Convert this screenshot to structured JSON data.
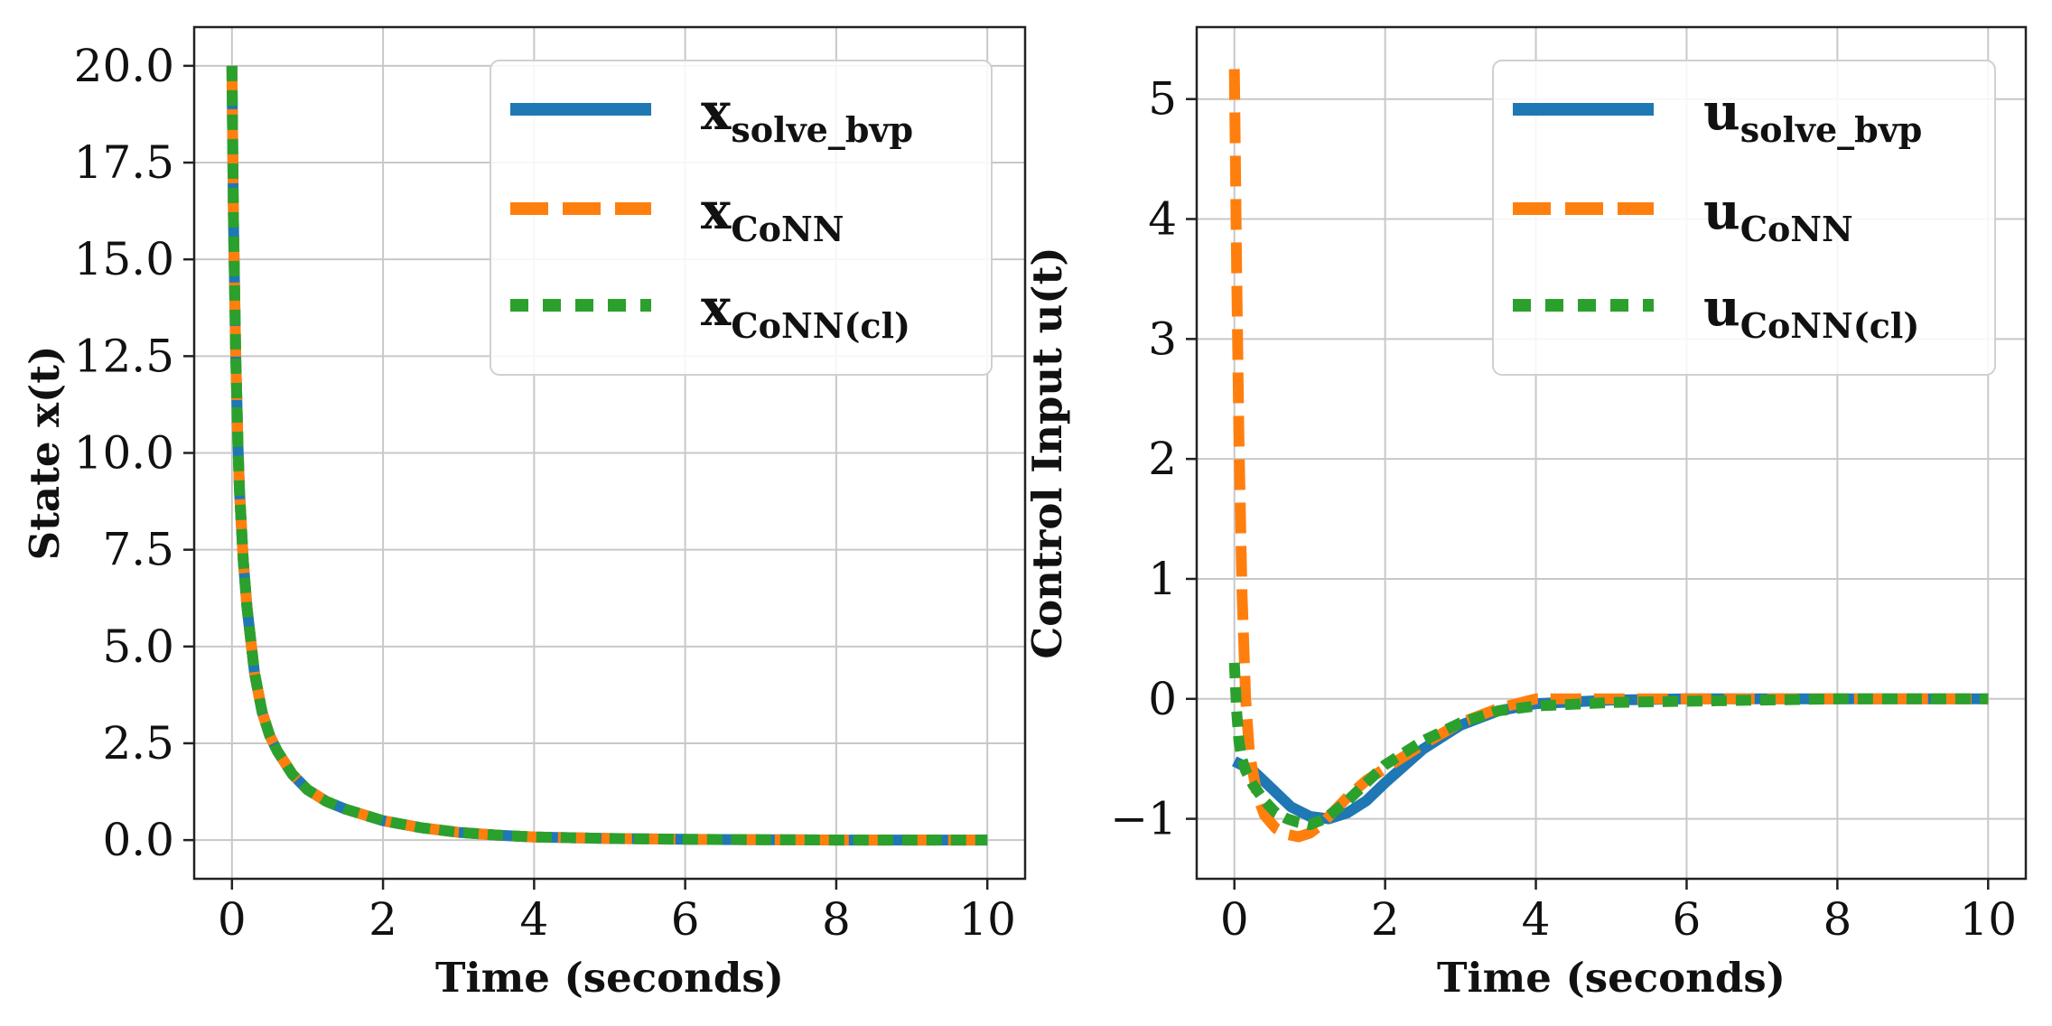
{
  "chart_data": [
    {
      "type": "line",
      "xlabel": "Time (seconds)",
      "ylabel": "State x(t)",
      "xlim": [
        -0.5,
        10.5
      ],
      "ylim": [
        -1.0,
        21.0
      ],
      "xticks": [
        0,
        2,
        4,
        6,
        8,
        10
      ],
      "xticklabels": [
        "0",
        "2",
        "4",
        "6",
        "8",
        "10"
      ],
      "yticks": [
        0,
        2.5,
        5,
        7.5,
        10,
        12.5,
        15,
        17.5,
        20
      ],
      "yticklabels": [
        "0.0",
        "2.5",
        "5.0",
        "7.5",
        "10.0",
        "12.5",
        "15.0",
        "17.5",
        "20.0"
      ],
      "grid": true,
      "legend_position": "top-right",
      "series": [
        {
          "name": "x_solve_bvp",
          "legend_base": "x",
          "legend_sub": "solve_bvp",
          "color": "#1f77b4",
          "style": "solid",
          "x": [
            0,
            0.02,
            0.05,
            0.08,
            0.1,
            0.15,
            0.2,
            0.3,
            0.4,
            0.5,
            0.6,
            0.8,
            1.0,
            1.25,
            1.5,
            2.0,
            2.5,
            3.0,
            3.5,
            4.0,
            5.0,
            6.0,
            7.0,
            8.0,
            9.0,
            10.0
          ],
          "y": [
            20.0,
            16.0,
            12.5,
            10.2,
            9.0,
            7.2,
            6.0,
            4.3,
            3.3,
            2.7,
            2.3,
            1.7,
            1.3,
            1.0,
            0.8,
            0.5,
            0.32,
            0.2,
            0.13,
            0.08,
            0.04,
            0.02,
            0.01,
            0.0,
            0.0,
            0.0
          ]
        },
        {
          "name": "x_CoNN",
          "legend_base": "x",
          "legend_sub": "CoNN",
          "color": "#ff7f0e",
          "style": "dashed",
          "x": [
            0,
            0.02,
            0.05,
            0.08,
            0.1,
            0.15,
            0.2,
            0.3,
            0.4,
            0.5,
            0.6,
            0.8,
            1.0,
            1.25,
            1.5,
            2.0,
            2.5,
            3.0,
            3.5,
            4.0,
            5.0,
            6.0,
            7.0,
            8.0,
            9.0,
            10.0
          ],
          "y": [
            20.0,
            16.0,
            12.5,
            10.2,
            9.0,
            7.2,
            6.0,
            4.3,
            3.3,
            2.7,
            2.3,
            1.7,
            1.3,
            1.0,
            0.8,
            0.5,
            0.32,
            0.2,
            0.13,
            0.08,
            0.04,
            0.02,
            0.01,
            0.0,
            0.0,
            0.0
          ]
        },
        {
          "name": "x_CoNN(cl)",
          "legend_base": "x",
          "legend_sub": "CoNN(cl)",
          "color": "#2ca02c",
          "style": "dotted",
          "x": [
            0,
            0.02,
            0.05,
            0.08,
            0.1,
            0.15,
            0.2,
            0.3,
            0.4,
            0.5,
            0.6,
            0.8,
            1.0,
            1.25,
            1.5,
            2.0,
            2.5,
            3.0,
            3.5,
            4.0,
            5.0,
            6.0,
            7.0,
            8.0,
            9.0,
            10.0
          ],
          "y": [
            20.0,
            16.0,
            12.5,
            10.2,
            9.0,
            7.2,
            6.0,
            4.3,
            3.3,
            2.7,
            2.3,
            1.7,
            1.3,
            1.0,
            0.8,
            0.5,
            0.32,
            0.2,
            0.13,
            0.08,
            0.04,
            0.02,
            0.01,
            0.0,
            0.0,
            0.0
          ]
        }
      ]
    },
    {
      "type": "line",
      "xlabel": "Time (seconds)",
      "ylabel": "Control Input u(t)",
      "xlim": [
        -0.5,
        10.5
      ],
      "ylim": [
        -1.5,
        5.6
      ],
      "xticks": [
        0,
        2,
        4,
        6,
        8,
        10
      ],
      "xticklabels": [
        "0",
        "2",
        "4",
        "6",
        "8",
        "10"
      ],
      "yticks": [
        -1,
        0,
        1,
        2,
        3,
        4,
        5
      ],
      "yticklabels": [
        "−1",
        "0",
        "1",
        "2",
        "3",
        "4",
        "5"
      ],
      "grid": true,
      "legend_position": "top-right",
      "series": [
        {
          "name": "u_solve_bvp",
          "legend_base": "u",
          "legend_sub": "solve_bvp",
          "color": "#1f77b4",
          "style": "solid",
          "x": [
            0,
            0.25,
            0.5,
            0.75,
            1.0,
            1.25,
            1.5,
            1.75,
            2.0,
            2.5,
            3.0,
            3.5,
            4.0,
            5.0,
            6.0,
            7.0,
            8.0,
            9.0,
            10.0
          ],
          "y": [
            -0.52,
            -0.6,
            -0.75,
            -0.9,
            -0.98,
            -1.0,
            -0.95,
            -0.85,
            -0.7,
            -0.42,
            -0.22,
            -0.1,
            -0.04,
            -0.01,
            0.0,
            0.0,
            0.0,
            0.0,
            0.0
          ]
        },
        {
          "name": "u_CoNN",
          "legend_base": "u",
          "legend_sub": "CoNN",
          "color": "#ff7f0e",
          "style": "dashed",
          "x": [
            0,
            0.03,
            0.06,
            0.1,
            0.15,
            0.2,
            0.3,
            0.4,
            0.55,
            0.7,
            0.85,
            1.0,
            1.15,
            1.3,
            1.5,
            1.75,
            2.0,
            2.5,
            3.0,
            3.5,
            4.0,
            5.0,
            6.0,
            7.0,
            8.0,
            9.0,
            10.0
          ],
          "y": [
            5.25,
            3.6,
            2.2,
            0.9,
            0.0,
            -0.45,
            -0.8,
            -0.97,
            -1.08,
            -1.13,
            -1.15,
            -1.12,
            -1.05,
            -0.95,
            -0.82,
            -0.68,
            -0.58,
            -0.38,
            -0.2,
            -0.08,
            0.0,
            0.0,
            0.0,
            0.0,
            0.0,
            0.0,
            0.0
          ]
        },
        {
          "name": "u_CoNN(cl)",
          "legend_base": "u",
          "legend_sub": "CoNN(cl)",
          "color": "#2ca02c",
          "style": "dotted",
          "x": [
            0,
            0.03,
            0.06,
            0.1,
            0.15,
            0.25,
            0.4,
            0.55,
            0.7,
            0.85,
            1.0,
            1.2,
            1.5,
            1.75,
            2.0,
            2.5,
            3.0,
            3.5,
            4.0,
            5.0,
            6.0,
            7.0,
            8.0,
            9.0,
            10.0
          ],
          "y": [
            0.3,
            -0.1,
            -0.35,
            -0.5,
            -0.6,
            -0.72,
            -0.85,
            -0.95,
            -1.0,
            -1.03,
            -1.05,
            -1.0,
            -0.85,
            -0.7,
            -0.55,
            -0.35,
            -0.2,
            -0.1,
            -0.06,
            -0.03,
            -0.02,
            -0.01,
            0.0,
            0.0,
            0.0
          ]
        }
      ]
    }
  ]
}
